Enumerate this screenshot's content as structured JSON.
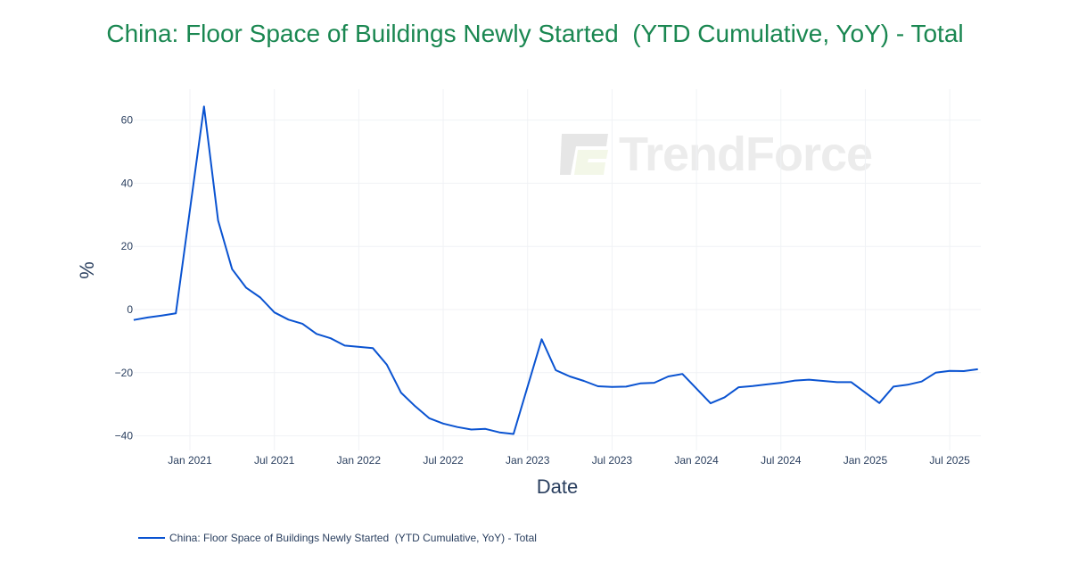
{
  "title": "China: Floor Space of Buildings Newly Started  (YTD Cumulative, YoY) - Total",
  "watermark": "TrendForce",
  "legend": {
    "label": "China: Floor Space of Buildings Newly Started  (YTD Cumulative, YoY) - Total",
    "color": "#0a53d1"
  },
  "colors": {
    "title": "#1a8751",
    "line": "#0a53d1",
    "grid": "#f0f2f5",
    "tick": "#2a3f5f"
  },
  "chart_data": {
    "type": "line",
    "title": "China: Floor Space of Buildings Newly Started  (YTD Cumulative, YoY) - Total",
    "xlabel": "Date",
    "ylabel": "%",
    "ylim": [
      -45,
      70
    ],
    "yticks": [
      60,
      40,
      20,
      0,
      -20,
      -40
    ],
    "ytick_labels": [
      "60",
      "40",
      "20",
      "0",
      "−20",
      "−40"
    ],
    "xticks": [
      "Jan 2021",
      "Jul 2021",
      "Jan 2022",
      "Jul 2022",
      "Jan 2023",
      "Jul 2023",
      "Jan 2024",
      "Jul 2024",
      "Jan 2025",
      "Jul 2025"
    ],
    "grid": true,
    "legend_position": "bottom-left",
    "series": [
      {
        "name": "China: Floor Space of Buildings Newly Started  (YTD Cumulative, YoY) - Total",
        "x": [
          "2020-09",
          "2020-10",
          "2020-11",
          "2020-12",
          "2021-02",
          "2021-03",
          "2021-04",
          "2021-05",
          "2021-06",
          "2021-07",
          "2021-08",
          "2021-09",
          "2021-10",
          "2021-11",
          "2021-12",
          "2022-02",
          "2022-03",
          "2022-04",
          "2022-05",
          "2022-06",
          "2022-07",
          "2022-08",
          "2022-09",
          "2022-10",
          "2022-11",
          "2022-12",
          "2023-02",
          "2023-03",
          "2023-04",
          "2023-05",
          "2023-06",
          "2023-07",
          "2023-08",
          "2023-09",
          "2023-10",
          "2023-11",
          "2023-12",
          "2024-02",
          "2024-03",
          "2024-04",
          "2024-05",
          "2024-06",
          "2024-07",
          "2024-08",
          "2024-09",
          "2024-10",
          "2024-11",
          "2024-12",
          "2025-02",
          "2025-03",
          "2025-04",
          "2025-05",
          "2025-06",
          "2025-07",
          "2025-08",
          "2025-09"
        ],
        "values": [
          -3.3,
          -2.5,
          -1.9,
          -1.2,
          64.3,
          28.2,
          12.8,
          6.9,
          3.8,
          -0.9,
          -3.2,
          -4.5,
          -7.7,
          -9.1,
          -11.4,
          -12.2,
          -17.5,
          -26.3,
          -30.6,
          -34.4,
          -36.1,
          -37.2,
          -38.0,
          -37.8,
          -38.9,
          -39.4,
          -9.4,
          -19.2,
          -21.2,
          -22.6,
          -24.3,
          -24.5,
          -24.4,
          -23.4,
          -23.2,
          -21.2,
          -20.4,
          -29.7,
          -27.8,
          -24.6,
          -24.2,
          -23.7,
          -23.2,
          -22.5,
          -22.2,
          -22.6,
          -23.0,
          -23.0,
          -29.6,
          -24.4,
          -23.8,
          -22.8,
          -20.0,
          -19.4,
          -19.5,
          -18.9
        ]
      }
    ]
  }
}
